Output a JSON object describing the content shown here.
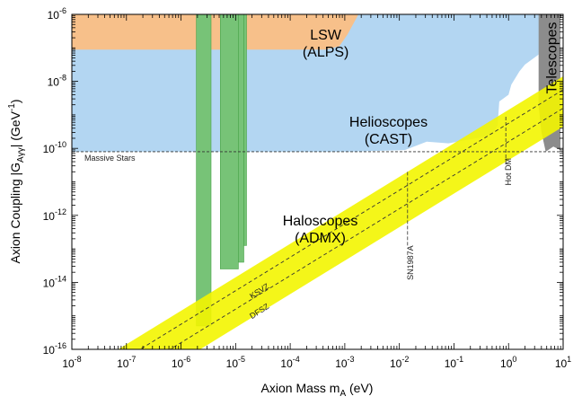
{
  "chart_data": {
    "type": "area",
    "title": "",
    "xlabel": "Axion Mass m",
    "xlabel_sub": "A",
    "xlabel_unit": " (eV)",
    "ylabel": "Axion Coupling |G",
    "ylabel_sub": "Aγγ",
    "ylabel_unit": "| (GeV",
    "ylabel_sup": "-1",
    "ylabel_close": ")",
    "x_scale": "log",
    "y_scale": "log",
    "xlim_exp": [
      -8,
      1
    ],
    "ylim_exp": [
      -16,
      -6
    ],
    "x_ticks": [
      {
        "base": "10",
        "exp": "-8",
        "v": -8
      },
      {
        "base": "10",
        "exp": "-7",
        "v": -7
      },
      {
        "base": "10",
        "exp": "-6",
        "v": -6
      },
      {
        "base": "10",
        "exp": "-5",
        "v": -5
      },
      {
        "base": "10",
        "exp": "-4",
        "v": -4
      },
      {
        "base": "10",
        "exp": "-3",
        "v": -3
      },
      {
        "base": "10",
        "exp": "-2",
        "v": -2
      },
      {
        "base": "10",
        "exp": "-1",
        "v": -1
      },
      {
        "base": "10",
        "exp": "0",
        "v": 0
      },
      {
        "base": "10",
        "exp": "1",
        "v": 1
      }
    ],
    "y_ticks": [
      {
        "base": "10",
        "exp": "-6",
        "v": -6
      },
      {
        "base": "10",
        "exp": "-8",
        "v": -8
      },
      {
        "base": "10",
        "exp": "-10",
        "v": -10
      },
      {
        "base": "10",
        "exp": "-12",
        "v": -12
      },
      {
        "base": "10",
        "exp": "-14",
        "v": -14
      },
      {
        "base": "10",
        "exp": "-16",
        "v": -16
      }
    ],
    "regions": [
      {
        "name": "Helioscopes",
        "subname": "(CAST)",
        "color": "#b3d6f2",
        "label_at": [
          -2.2,
          -9.35
        ],
        "points": [
          [
            -8,
            -10.1
          ],
          [
            -2.9,
            -10.1
          ],
          [
            -1.9,
            -10.05
          ],
          [
            -1.5,
            -9.8
          ],
          [
            -1.1,
            -9.85
          ],
          [
            -0.6,
            -9.7
          ],
          [
            -0.3,
            -9.6
          ],
          [
            -0.2,
            -9.3
          ],
          [
            -0.17,
            -8.6
          ],
          [
            0.0,
            -8.4
          ],
          [
            0.05,
            -8.1
          ],
          [
            0.2,
            -7.7
          ],
          [
            0.3,
            -7.5
          ],
          [
            0.55,
            -7.2
          ],
          [
            0.6,
            -6
          ],
          [
            -8,
            -6
          ]
        ]
      },
      {
        "name": "LSW",
        "subname": "(ALPS)",
        "color": "#f7c08a",
        "label_at": [
          -3.35,
          -6.75
        ],
        "points": [
          [
            -8,
            -7.05
          ],
          [
            -3.35,
            -7.05
          ],
          [
            -3.1,
            -6.95
          ],
          [
            -2.95,
            -6.6
          ],
          [
            -2.75,
            -6.0
          ],
          [
            -8,
            -6.0
          ]
        ]
      },
      {
        "name": "Telescopes",
        "subname": "",
        "color": "#8c8c8c",
        "label_at": [
          0.76,
          -7.3
        ],
        "points": [
          [
            0.55,
            -6.0
          ],
          [
            0.95,
            -6.0
          ],
          [
            0.95,
            -10.05
          ],
          [
            0.82,
            -9.95
          ],
          [
            0.68,
            -10.1
          ],
          [
            0.6,
            -9.5
          ],
          [
            0.55,
            -8.7
          ]
        ]
      }
    ],
    "haloscopes": {
      "name": "Haloscopes",
      "subname": "(ADMX)",
      "color": "#77c377",
      "label_at": [
        -3.45,
        -12.3
      ],
      "bands": [
        {
          "x": [
            -5.72,
            -5.45
          ],
          "ymin": -15.3
        },
        {
          "x": [
            -5.28,
            -4.95
          ],
          "ymin": -13.6
        },
        {
          "x": [
            -4.95,
            -4.85
          ],
          "ymin": -13.4
        },
        {
          "x": [
            -4.85,
            -4.8
          ],
          "ymin": -12.9
        }
      ]
    },
    "qcd_band": {
      "color": "#f3f500",
      "slope": 1,
      "intercept_top": -8.85,
      "intercept_bottom": -10.35
    },
    "series": [
      {
        "name": "KSVZ",
        "type": "line",
        "slope": 1,
        "intercept": -9.25,
        "label_at": [
          -4.7,
          -14.5
        ]
      },
      {
        "name": "DFSZ",
        "type": "line",
        "slope": 1,
        "intercept": -9.8,
        "label_at": [
          -4.7,
          -15.1
        ]
      }
    ],
    "reference_lines": [
      {
        "name": "Massive Stars",
        "orientation": "horizontal",
        "value": -10.1
      },
      {
        "name": "SN1987A",
        "orientation": "vertical",
        "x": -1.85,
        "ymin": -12.9,
        "ymax": -10.7
      },
      {
        "name": "Hot DM",
        "orientation": "vertical",
        "x": -0.05,
        "ymin": -10.45,
        "ymax": -9.05
      }
    ],
    "colors": {
      "axis": "#000000",
      "dashed": "#333333"
    }
  }
}
